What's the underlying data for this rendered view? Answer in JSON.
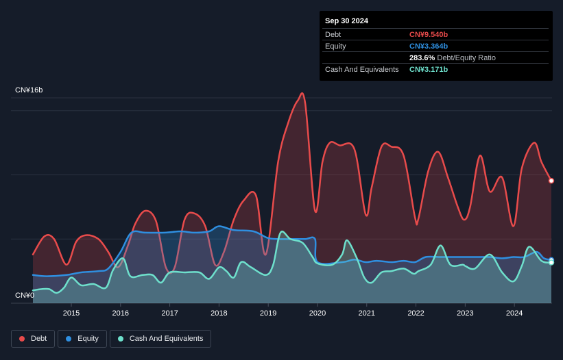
{
  "tooltip": {
    "date": "Sep 30 2024",
    "debt_label": "Debt",
    "debt_value": "CN¥9.540b",
    "equity_label": "Equity",
    "equity_value": "CN¥3.364b",
    "ratio_value": "283.6%",
    "ratio_label": "Debt/Equity Ratio",
    "cash_label": "Cash And Equivalents",
    "cash_value": "CN¥3.171b"
  },
  "legend": [
    {
      "label": "Debt",
      "color": "#e84b4b"
    },
    {
      "label": "Equity",
      "color": "#2f8fe0"
    },
    {
      "label": "Cash And Equivalents",
      "color": "#6ee0cc"
    }
  ],
  "chart_data": {
    "type": "area",
    "y_top_label": "CN¥16b",
    "y_bottom_label": "CN¥0",
    "ylim": [
      0,
      16
    ],
    "xlim": [
      2014.22,
      2024.75
    ],
    "x_ticks": [
      "2015",
      "2016",
      "2017",
      "2018",
      "2019",
      "2020",
      "2021",
      "2022",
      "2023",
      "2024"
    ],
    "colors": {
      "debt": "#e84b4b",
      "equity": "#2f8fe0",
      "cash": "#6ee0cc"
    },
    "series": [
      {
        "name": "Debt",
        "x": [
          2014.22,
          2014.45,
          2014.65,
          2014.9,
          2015.1,
          2015.3,
          2015.55,
          2015.75,
          2015.95,
          2016.15,
          2016.3,
          2016.5,
          2016.72,
          2016.92,
          2017.1,
          2017.3,
          2017.5,
          2017.72,
          2017.92,
          2018.1,
          2018.3,
          2018.5,
          2018.75,
          2018.95,
          2019.2,
          2019.4,
          2019.6,
          2019.75,
          2019.95,
          2020.1,
          2020.25,
          2020.45,
          2020.75,
          2020.98,
          2021.1,
          2021.3,
          2021.5,
          2021.75,
          2021.98,
          2022.05,
          2022.25,
          2022.45,
          2022.65,
          2022.85,
          2022.98,
          2023.1,
          2023.3,
          2023.5,
          2023.75,
          2023.98,
          2024.15,
          2024.4,
          2024.55,
          2024.75
        ],
        "values": [
          3.8,
          5.2,
          5.0,
          3.0,
          4.8,
          5.3,
          5.0,
          4.0,
          2.8,
          4.5,
          6.2,
          7.2,
          6.4,
          2.8,
          2.8,
          6.5,
          7.0,
          6.0,
          3.0,
          4.0,
          6.5,
          8.0,
          8.4,
          3.8,
          11.0,
          14.0,
          15.8,
          15.6,
          7.2,
          11.0,
          12.5,
          12.3,
          12.0,
          6.9,
          9.0,
          12.2,
          12.2,
          11.5,
          6.7,
          6.6,
          10.3,
          11.8,
          9.8,
          7.5,
          6.5,
          7.5,
          11.5,
          8.7,
          9.8,
          6.0,
          10.5,
          12.5,
          11.0,
          9.54
        ]
      },
      {
        "name": "Equity",
        "x": [
          2014.22,
          2014.5,
          2014.9,
          2015.2,
          2015.55,
          2015.75,
          2016.0,
          2016.22,
          2016.5,
          2016.9,
          2017.22,
          2017.5,
          2017.8,
          2018.0,
          2018.3,
          2018.7,
          2018.98,
          2019.2,
          2019.5,
          2019.75,
          2019.95,
          2020.0,
          2020.5,
          2020.75,
          2020.98,
          2021.2,
          2021.5,
          2021.75,
          2021.98,
          2022.2,
          2022.5,
          2022.75,
          2022.98,
          2023.2,
          2023.5,
          2023.75,
          2023.98,
          2024.2,
          2024.45,
          2024.6,
          2024.75
        ],
        "values": [
          2.2,
          2.1,
          2.2,
          2.4,
          2.5,
          2.7,
          4.0,
          5.5,
          5.5,
          5.5,
          5.6,
          5.5,
          5.6,
          6.0,
          5.7,
          5.6,
          5.1,
          5.0,
          5.0,
          5.0,
          5.0,
          3.2,
          3.2,
          3.4,
          3.2,
          3.3,
          3.2,
          3.3,
          3.2,
          3.6,
          3.6,
          3.6,
          3.6,
          3.6,
          3.6,
          3.5,
          3.6,
          3.6,
          4.0,
          3.5,
          3.364
        ]
      },
      {
        "name": "Cash And Equivalents",
        "x": [
          2014.22,
          2014.4,
          2014.55,
          2014.7,
          2014.85,
          2015.0,
          2015.2,
          2015.45,
          2015.7,
          2015.85,
          2016.05,
          2016.2,
          2016.45,
          2016.65,
          2016.82,
          2017.0,
          2017.3,
          2017.6,
          2017.8,
          2018.0,
          2018.15,
          2018.3,
          2018.45,
          2018.65,
          2018.95,
          2019.1,
          2019.25,
          2019.45,
          2019.7,
          2019.9,
          2020.0,
          2020.3,
          2020.5,
          2020.6,
          2020.8,
          2020.95,
          2021.1,
          2021.3,
          2021.5,
          2021.75,
          2021.95,
          2022.05,
          2022.3,
          2022.5,
          2022.7,
          2022.95,
          2023.0,
          2023.2,
          2023.5,
          2023.75,
          2023.98,
          2024.15,
          2024.3,
          2024.55,
          2024.75
        ],
        "values": [
          1.0,
          1.1,
          1.1,
          0.8,
          1.2,
          2.0,
          1.4,
          1.5,
          1.2,
          2.6,
          3.5,
          2.1,
          2.2,
          2.2,
          1.6,
          2.4,
          2.4,
          2.4,
          1.9,
          2.8,
          2.5,
          2.0,
          3.2,
          2.8,
          2.2,
          3.0,
          5.5,
          5.0,
          4.7,
          3.6,
          3.1,
          3.0,
          3.8,
          4.9,
          3.5,
          2.0,
          1.6,
          2.4,
          2.5,
          2.7,
          2.3,
          2.5,
          3.0,
          4.5,
          3.0,
          3.0,
          2.9,
          2.7,
          3.8,
          2.4,
          1.7,
          2.9,
          4.4,
          3.3,
          3.171
        ]
      }
    ]
  }
}
